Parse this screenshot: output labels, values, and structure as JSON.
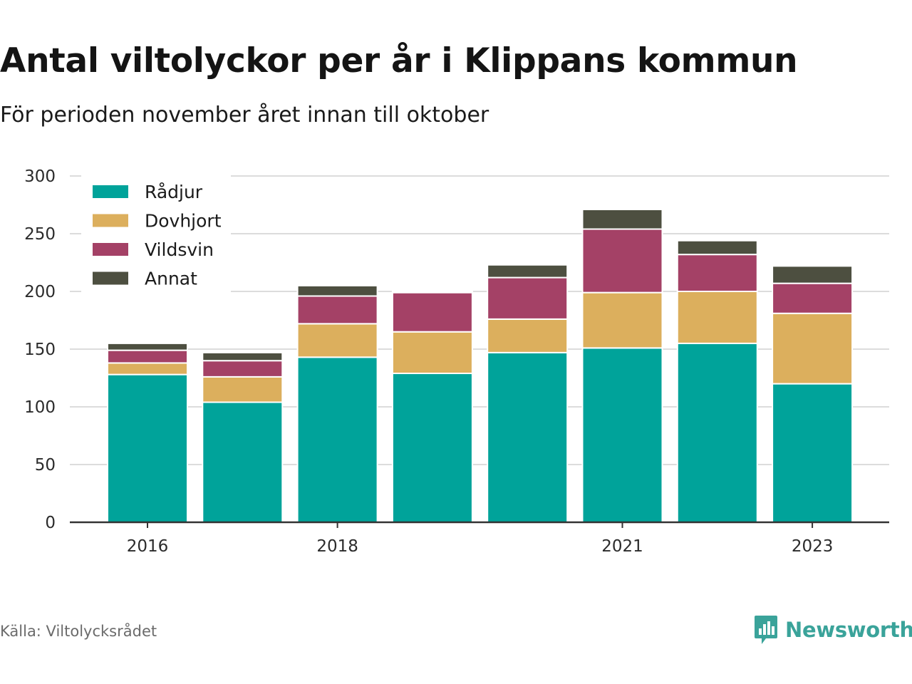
{
  "title": "Antal viltolyckor per år i Klippans kommun",
  "subtitle": "För perioden november året innan till oktober",
  "source": "Källa: Viltolycksrådet",
  "brand": {
    "name": "Newsworthy",
    "icon": "bar-chart-speech-bubble-icon",
    "color": "#3aa39a"
  },
  "chart_data": {
    "type": "bar",
    "stacked": true,
    "categories": [
      "2016",
      "2017",
      "2018",
      "2019",
      "2020",
      "2021",
      "2022",
      "2023"
    ],
    "x_tick_labels": [
      "2016",
      "",
      "2018",
      "",
      "",
      "2021",
      "",
      "2023"
    ],
    "series": [
      {
        "name": "Rådjur",
        "color": "#00a39a",
        "values": [
          128,
          104,
          143,
          129,
          147,
          151,
          155,
          120
        ]
      },
      {
        "name": "Dovhjort",
        "color": "#dcaf5d",
        "values": [
          10,
          22,
          29,
          36,
          29,
          48,
          45,
          61
        ]
      },
      {
        "name": "Vildsvin",
        "color": "#a44166",
        "values": [
          11,
          14,
          24,
          34,
          36,
          55,
          32,
          26
        ]
      },
      {
        "name": "Annat",
        "color": "#4d4f40",
        "values": [
          6,
          7,
          9,
          1,
          11,
          17,
          12,
          15
        ]
      }
    ],
    "ylim": [
      0,
      300
    ],
    "yticks": [
      0,
      50,
      100,
      150,
      200,
      250,
      300
    ],
    "grid": true,
    "legend_position": "top-left"
  }
}
